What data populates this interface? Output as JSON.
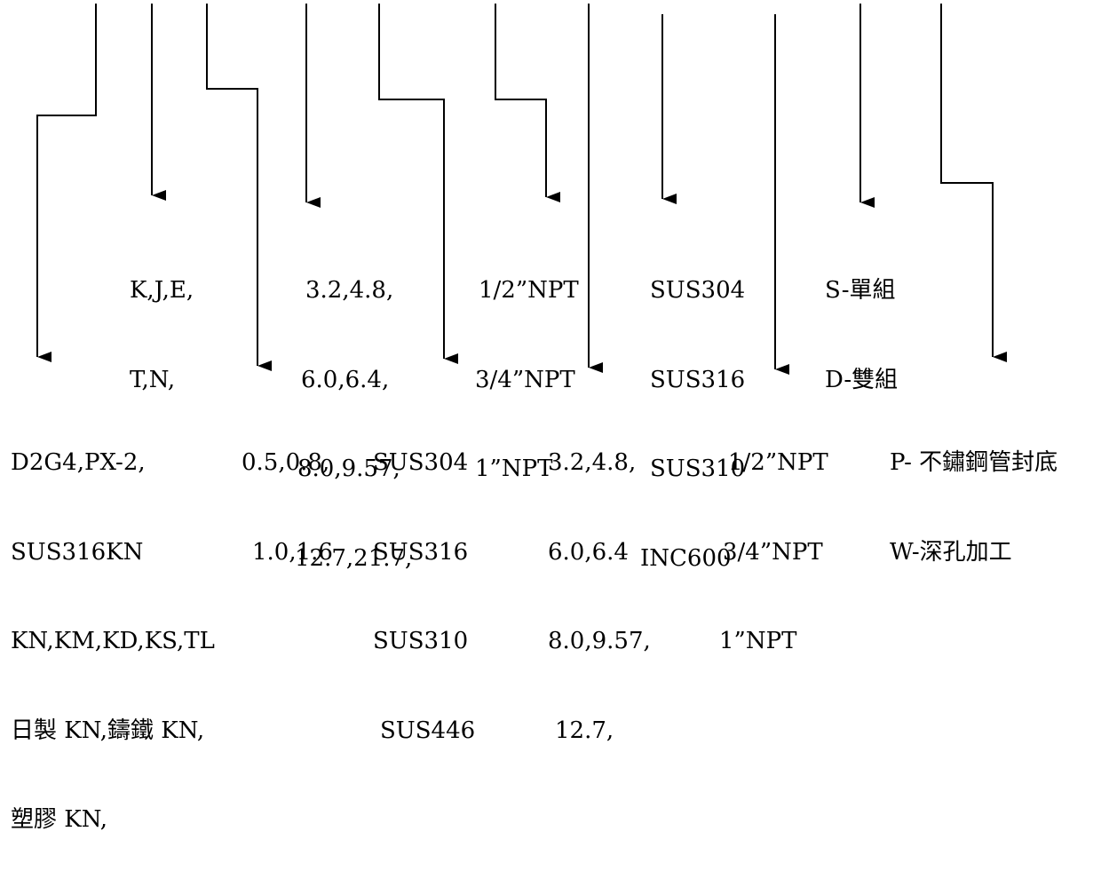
{
  "colors": {
    "line": "#000000",
    "text": "#000000",
    "background": "#ffffff"
  },
  "upper_options": {
    "thermocouple_type": [
      "K,J,E,",
      "T,N,"
    ],
    "sheath_diameter": [
      "3.2,4.8,",
      "6.0,6.4,",
      "8.0,9.57,",
      "12.7,21.7,"
    ],
    "thread_size": [
      "1/2”NPT",
      "3/4”NPT",
      "1”NPT"
    ],
    "fitting_material": [
      "SUS304",
      "SUS316",
      "SUS310",
      "INC600"
    ],
    "element_count": [
      "S-單組",
      "D-雙組"
    ]
  },
  "lower_options": {
    "head_type": [
      "D2G4,PX-2,",
      "SUS316KN",
      "KN,KM,KD,KS,TL",
      "日製 KN,鑄鐵 KN,",
      "塑膠 KN,"
    ],
    "wire_diameter": [
      "0.5,0.8,",
      "1.0,1.6"
    ],
    "sheath_material": [
      "SUS304",
      "SUS316",
      "SUS310",
      "SUS446"
    ],
    "protection_tube_diameter": [
      "3.2,4.8,",
      "6.0,6.4",
      "8.0,9.57,",
      "12.7,"
    ],
    "head_thread": [
      "1/2”NPT",
      "3/4”NPT",
      "1”NPT"
    ],
    "tip_type": [
      "P- 不鏽鋼管封底",
      "W-深孔加工"
    ]
  }
}
